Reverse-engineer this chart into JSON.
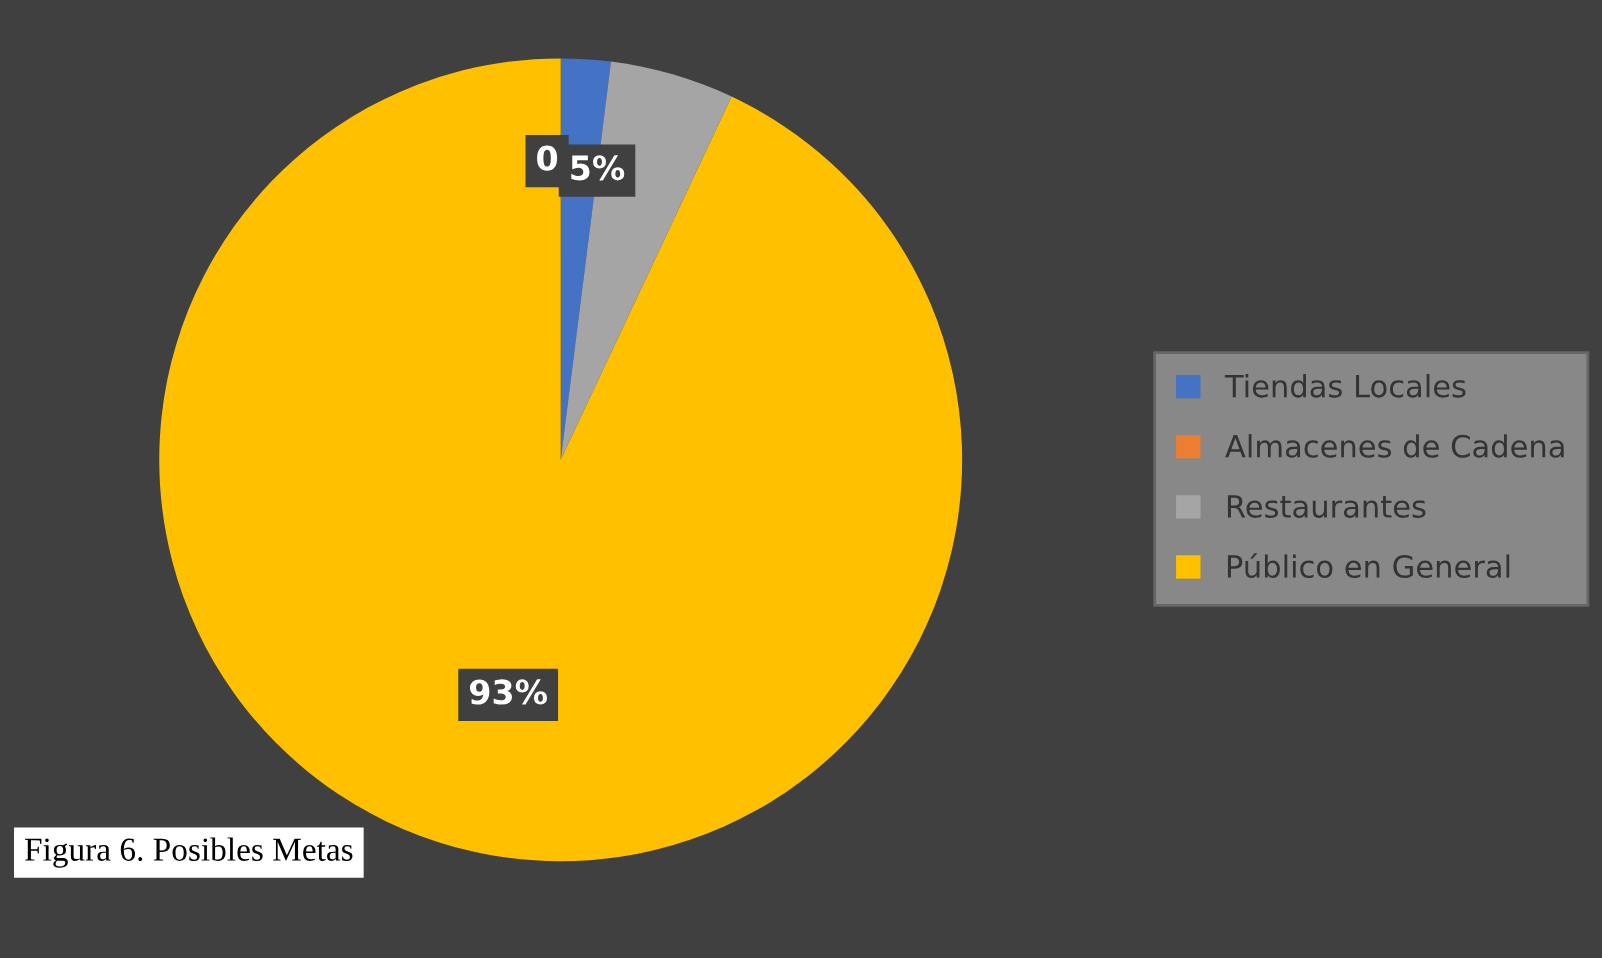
{
  "chart_data": {
    "type": "pie",
    "categories": [
      "Tiendas Locales",
      "Almacenes de Cadena",
      "Restaurantes",
      "Público en General"
    ],
    "values": [
      2,
      0,
      5,
      93
    ],
    "colors": [
      "#4472c4",
      "#ed7d31",
      "#a5a5a5",
      "#ffc000"
    ],
    "value_labels": [
      null,
      "0",
      "5%",
      "93%"
    ],
    "legend": "right",
    "annotations": [
      "Figura 6. Posibles Metas"
    ]
  }
}
